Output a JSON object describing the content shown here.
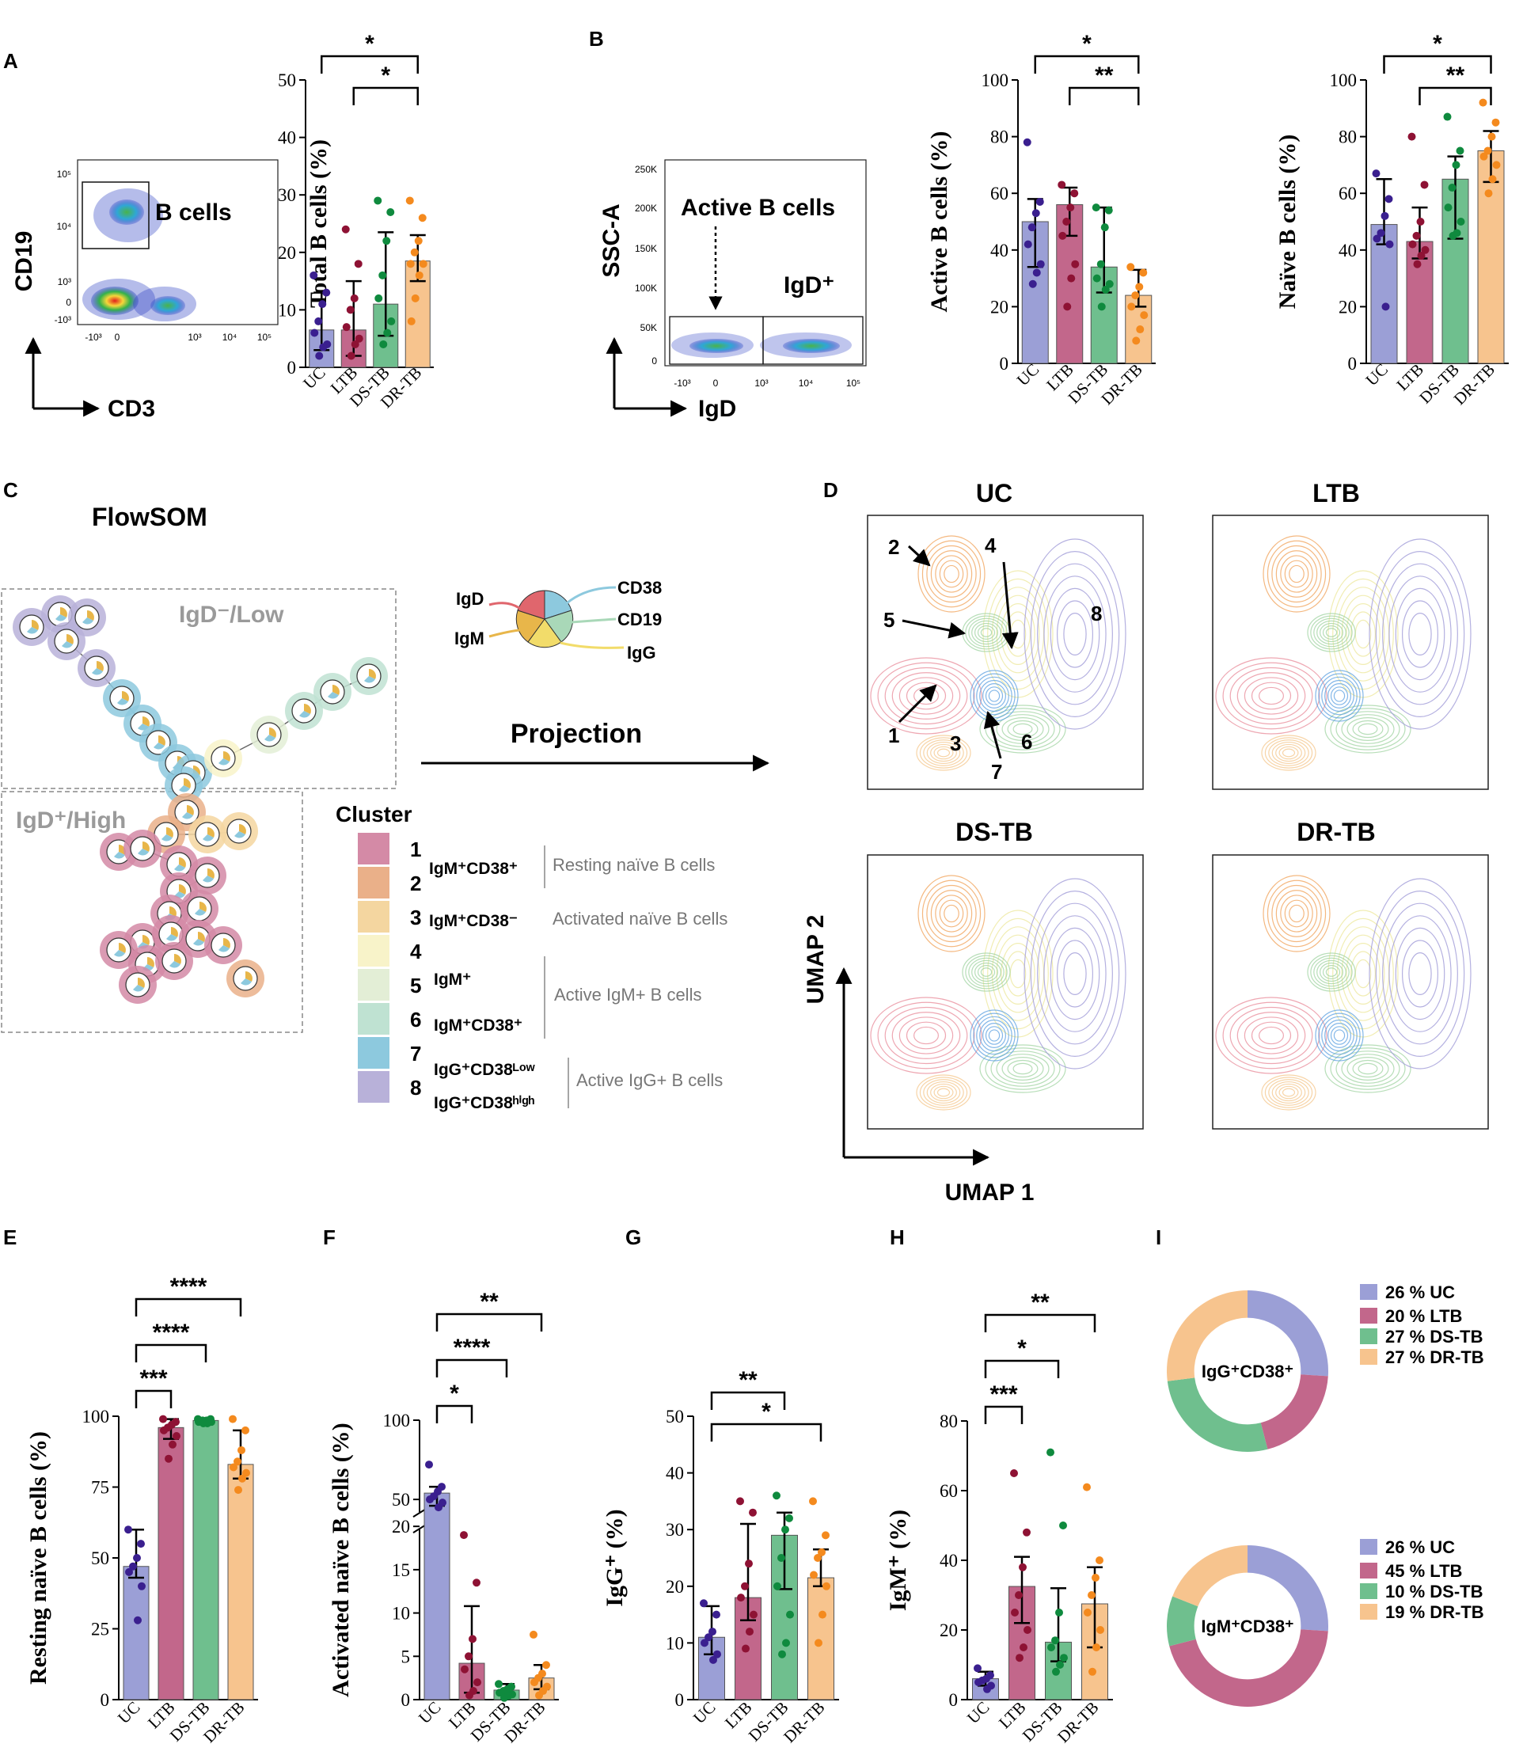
{
  "colors": {
    "UC": "#9b9fd6",
    "LTB": "#c2678b",
    "DSTB": "#6fbf8e",
    "DRTB": "#f7c48e",
    "UC_dot": "#3a1f8f",
    "LTB_dot": "#8e1234",
    "DSTB_dot": "#0f8a3e",
    "DRTB_dot": "#f48a1e"
  },
  "panels": {
    "A": "A",
    "B": "B",
    "C": "C",
    "D": "D",
    "E": "E",
    "F": "F",
    "G": "G",
    "H": "H",
    "I": "I"
  },
  "flowA": {
    "gate_label": "B cells",
    "y_axis": "CD19",
    "x_axis": "CD3",
    "y_ticks": [
      "10⁵",
      "10⁴",
      "10³",
      "0",
      "-10³"
    ],
    "x_ticks": [
      "-10³",
      "0",
      "10³",
      "10⁴",
      "10⁵"
    ]
  },
  "flowB": {
    "y_axis": "SSC-A",
    "x_axis": "IgD",
    "y_ticks": [
      "250K",
      "200K",
      "150K",
      "100K",
      "50K",
      "0"
    ],
    "x_ticks": [
      "-10³",
      "0",
      "10³",
      "10⁴",
      "10⁵"
    ],
    "gate_left": "Active B cells",
    "gate_right": "IgD⁺"
  },
  "flowsom": {
    "title": "FlowSOM",
    "region_top": "IgD⁻/Low",
    "region_bottom": "IgD⁺/High",
    "pie_legend": [
      "IgD",
      "IgM",
      "CD38",
      "CD19",
      "IgG"
    ],
    "projection": "Projection"
  },
  "cluster_legend": {
    "title": "Cluster",
    "items": [
      {
        "num": "1",
        "color": "#d48aa6"
      },
      {
        "num": "2",
        "color": "#eab089"
      },
      {
        "num": "3",
        "color": "#f4d6a0"
      },
      {
        "num": "4",
        "color": "#f8f3c9"
      },
      {
        "num": "5",
        "color": "#e3eed6"
      },
      {
        "num": "6",
        "color": "#bfe2d2"
      },
      {
        "num": "7",
        "color": "#8dc9de"
      },
      {
        "num": "8",
        "color": "#b8b1d9"
      }
    ],
    "markers": [
      "IgM⁺CD38⁺",
      "IgM⁺CD38⁻",
      "IgM⁺",
      "IgM⁺CD38⁺",
      "IgG⁺CD38ᴸᵒʷ",
      "IgG⁺CD38ʰⁱᵍʰ"
    ],
    "groups": [
      "Resting naïve B cells",
      "Activated naïve B cells",
      "Active IgM+ B cells",
      "Active IgG+ B cells"
    ]
  },
  "umap": {
    "titles": [
      "UC",
      "LTB",
      "DS-TB",
      "DR-TB"
    ],
    "axis_x": "UMAP 1",
    "axis_y": "UMAP 2",
    "cluster_numbers": [
      "1",
      "2",
      "3",
      "4",
      "5",
      "6",
      "7",
      "8"
    ]
  },
  "chart_data": [
    {
      "id": "A",
      "type": "bar",
      "ylabel": "Total B cells (%)",
      "ylim": [
        0,
        50
      ],
      "yticks": [
        "0",
        "10",
        "20",
        "30",
        "40",
        "50"
      ],
      "categories": [
        "UC",
        "LTB",
        "DS-TB",
        "DR-TB"
      ],
      "values": [
        6.5,
        6.5,
        11,
        18.5
      ],
      "err_low": [
        3,
        2,
        5.5,
        15
      ],
      "err_high": [
        13,
        15,
        23.5,
        23
      ],
      "points": [
        [
          16,
          13,
          11,
          8,
          6,
          4,
          3.5,
          2
        ],
        [
          24,
          18,
          12,
          10,
          7,
          5,
          4,
          2
        ],
        [
          29,
          27,
          22,
          16,
          12,
          8,
          6,
          4
        ],
        [
          29,
          26,
          22,
          20,
          18,
          18,
          16,
          12,
          8
        ]
      ],
      "sig": [
        {
          "from": 0,
          "to": 3,
          "label": "*"
        },
        {
          "from": 1,
          "to": 3,
          "label": "*"
        }
      ]
    },
    {
      "id": "B1",
      "type": "bar",
      "ylabel": "Active B cells (%)",
      "ylim": [
        0,
        100
      ],
      "yticks": [
        "0",
        "20",
        "40",
        "60",
        "80",
        "100"
      ],
      "categories": [
        "UC",
        "LTB",
        "DS-TB",
        "DR-TB"
      ],
      "values": [
        50,
        56,
        34,
        24
      ],
      "err_low": [
        34,
        45,
        25,
        20
      ],
      "err_high": [
        58,
        62,
        55,
        33
      ],
      "points": [
        [
          78,
          57,
          53,
          48,
          42,
          35,
          32,
          28
        ],
        [
          63,
          60,
          55,
          50,
          45,
          35,
          30,
          20
        ],
        [
          55,
          54,
          48,
          35,
          30,
          28,
          26,
          20
        ],
        [
          34,
          32,
          27,
          24,
          20,
          17,
          12,
          8
        ]
      ],
      "sig": [
        {
          "from": 0,
          "to": 3,
          "label": "*"
        },
        {
          "from": 1,
          "to": 3,
          "label": "**"
        }
      ]
    },
    {
      "id": "B2",
      "type": "bar",
      "ylabel": "Naïve B cells (%)",
      "ylim": [
        0,
        100
      ],
      "yticks": [
        "0",
        "20",
        "40",
        "60",
        "80",
        "100"
      ],
      "categories": [
        "UC",
        "LTB",
        "DS-TB",
        "DR-TB"
      ],
      "values": [
        49,
        43,
        65,
        75
      ],
      "err_low": [
        42,
        37,
        44,
        64
      ],
      "err_high": [
        65,
        55,
        73,
        82
      ],
      "points": [
        [
          67,
          58,
          52,
          46,
          44,
          42,
          20
        ],
        [
          80,
          63,
          50,
          45,
          42,
          40,
          38,
          35
        ],
        [
          87,
          75,
          70,
          62,
          55,
          50,
          46,
          45
        ],
        [
          92,
          85,
          80,
          75,
          73,
          70,
          65,
          60
        ]
      ],
      "sig": [
        {
          "from": 0,
          "to": 3,
          "label": "*"
        },
        {
          "from": 1,
          "to": 3,
          "label": "**"
        }
      ]
    },
    {
      "id": "E",
      "type": "bar",
      "ylabel": "Resting naïve B cells (%)",
      "ylim": [
        0,
        100
      ],
      "yticks": [
        "0",
        "25",
        "50",
        "75",
        "100"
      ],
      "categories": [
        "UC",
        "LTB",
        "DS-TB",
        "DR-TB"
      ],
      "values": [
        47,
        96,
        98.5,
        83
      ],
      "err_low": [
        43,
        92,
        97.5,
        78
      ],
      "err_high": [
        60,
        99,
        99,
        95
      ],
      "points": [
        [
          60,
          55,
          50,
          47,
          45,
          40,
          28
        ],
        [
          99,
          98,
          97,
          96,
          95,
          93,
          90,
          85
        ],
        [
          99,
          99,
          98.5,
          98.5,
          98,
          98,
          97.5,
          97.5
        ],
        [
          99,
          95,
          88,
          84,
          82,
          80,
          78,
          74
        ]
      ],
      "sig": [
        {
          "from": 0,
          "to": 1,
          "label": "***"
        },
        {
          "from": 0,
          "to": 2,
          "label": "****"
        },
        {
          "from": 0,
          "to": 3,
          "label": "****"
        }
      ]
    },
    {
      "id": "F",
      "type": "bar",
      "ylabel": "Activated naïve B cells (%)",
      "ylim": [
        0,
        100
      ],
      "break": [
        20,
        40
      ],
      "yticks": [
        "0",
        "5",
        "10",
        "15",
        "20",
        "50",
        "100"
      ],
      "categories": [
        "UC",
        "LTB",
        "DS-TB",
        "DR-TB"
      ],
      "values": [
        54,
        4.2,
        1.1,
        2.5
      ],
      "err_low": [
        46,
        0.8,
        0.7,
        1.2
      ],
      "err_high": [
        58,
        10.8,
        1.8,
        4
      ],
      "points": [
        [
          72,
          58,
          55,
          52,
          50,
          48,
          45
        ],
        [
          19,
          13.5,
          7,
          5,
          3.5,
          2,
          1,
          0.5
        ],
        [
          1.8,
          1.5,
          1.2,
          1,
          0.8,
          0.6,
          0.4,
          0.2
        ],
        [
          7.5,
          4,
          3,
          2.5,
          2,
          1.5,
          1,
          0.5
        ]
      ],
      "sig": [
        {
          "from": 0,
          "to": 1,
          "label": "*"
        },
        {
          "from": 0,
          "to": 2,
          "label": "****"
        },
        {
          "from": 0,
          "to": 3,
          "label": "**"
        }
      ]
    },
    {
      "id": "G",
      "type": "bar",
      "ylabel": "IgG⁺ (%)",
      "ylim": [
        0,
        50
      ],
      "yticks": [
        "0",
        "10",
        "20",
        "30",
        "40",
        "50"
      ],
      "categories": [
        "UC",
        "LTB",
        "DS-TB",
        "DR-TB"
      ],
      "values": [
        11,
        18,
        29,
        21.5
      ],
      "err_low": [
        8,
        14,
        19.5,
        20
      ],
      "err_high": [
        16.5,
        31,
        33,
        26.5
      ],
      "points": [
        [
          17,
          15,
          12,
          11,
          10,
          8,
          7
        ],
        [
          35,
          33,
          24,
          20,
          18,
          15,
          12,
          9
        ],
        [
          36,
          32,
          30,
          25,
          20,
          15,
          10,
          8
        ],
        [
          35,
          29,
          26,
          25,
          22,
          20,
          15,
          10
        ]
      ],
      "sig": [
        {
          "from": 0,
          "to": 2,
          "label": "**"
        },
        {
          "from": 0,
          "to": 3,
          "label": "*"
        }
      ]
    },
    {
      "id": "H",
      "type": "bar",
      "ylabel": "IgM⁺ (%)",
      "ylim": [
        0,
        80
      ],
      "yticks": [
        "0",
        "20",
        "40",
        "60",
        "80"
      ],
      "categories": [
        "UC",
        "LTB",
        "DS-TB",
        "DR-TB"
      ],
      "values": [
        6,
        32.5,
        16.5,
        27.5
      ],
      "err_low": [
        4,
        22,
        11,
        15
      ],
      "err_high": [
        8,
        41,
        32,
        38
      ],
      "points": [
        [
          9,
          7,
          6,
          5.5,
          5,
          4,
          3
        ],
        [
          65,
          48,
          38,
          30,
          25,
          20,
          15,
          12
        ],
        [
          71,
          50,
          25,
          17,
          15,
          12,
          10,
          8
        ],
        [
          61,
          40,
          35,
          30,
          25,
          20,
          15,
          8
        ]
      ],
      "sig": [
        {
          "from": 0,
          "to": 1,
          "label": "***"
        },
        {
          "from": 0,
          "to": 2,
          "label": "*"
        },
        {
          "from": 0,
          "to": 3,
          "label": "**"
        }
      ]
    },
    {
      "id": "I1",
      "type": "pie",
      "center": "IgG⁺CD38⁺",
      "slices": [
        {
          "label": "UC",
          "pct": 26
        },
        {
          "label": "LTB",
          "pct": 20
        },
        {
          "label": "DS-TB",
          "pct": 27
        },
        {
          "label": "DR-TB",
          "pct": 27
        }
      ],
      "legend": [
        "26 %  UC",
        "20 %  LTB",
        "27 %  DS-TB",
        "27 %  DR-TB"
      ]
    },
    {
      "id": "I2",
      "type": "pie",
      "center": "IgM⁺CD38⁺",
      "slices": [
        {
          "label": "UC",
          "pct": 26
        },
        {
          "label": "LTB",
          "pct": 45
        },
        {
          "label": "DS-TB",
          "pct": 10
        },
        {
          "label": "DR-TB",
          "pct": 19
        }
      ],
      "legend": [
        "26 %  UC",
        "45 %  LTB",
        "10 %  DS-TB",
        "19 %  DR-TB"
      ]
    }
  ]
}
